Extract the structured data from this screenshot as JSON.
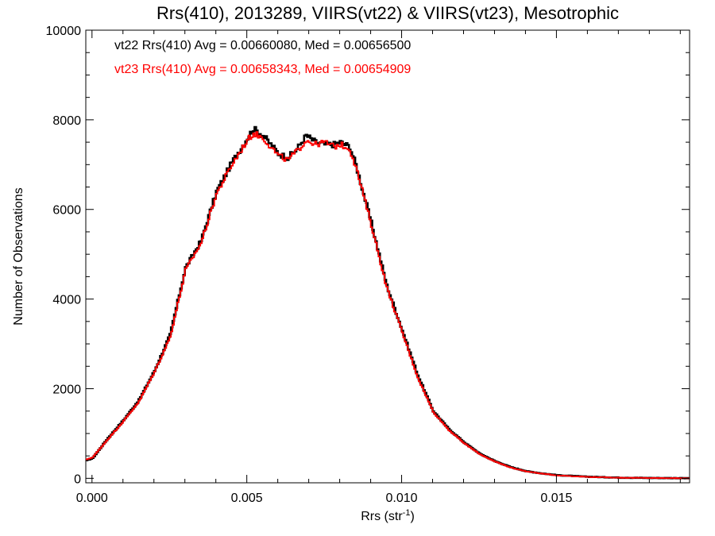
{
  "chart_data": {
    "type": "line",
    "title": "Rrs(410), 2013289, VIIRS(vt22) & VIIRS(vt23), Mesotrophic",
    "xlabel": "Rrs (str",
    "xlabel_sup": "-1",
    "xlabel_close": ")",
    "ylabel": "Number of Observations",
    "xlim": [
      -0.0002,
      0.0193
    ],
    "ylim": [
      -100,
      10000
    ],
    "x_ticks": [
      {
        "value": 0.0,
        "label": "0.000"
      },
      {
        "value": 0.005,
        "label": "0.005"
      },
      {
        "value": 0.01,
        "label": "0.010"
      },
      {
        "value": 0.015,
        "label": "0.015"
      }
    ],
    "y_ticks": [
      {
        "value": 0,
        "label": "0"
      },
      {
        "value": 2000,
        "label": "2000"
      },
      {
        "value": 4000,
        "label": "4000"
      },
      {
        "value": 6000,
        "label": "6000"
      },
      {
        "value": 8000,
        "label": "8000"
      },
      {
        "value": 10000,
        "label": "10000"
      }
    ],
    "grid": false,
    "legend_position": "top-left",
    "annotations": [
      {
        "text": "vt22 Rrs(410) Avg = 0.00660080, Med = 0.00656500",
        "color": "#000000"
      },
      {
        "text": "vt23 Rrs(410) Avg = 0.00658343, Med = 0.00654909",
        "color": "#ff0000"
      }
    ],
    "series": [
      {
        "color": "#000000",
        "step": true,
        "x": [
          -0.0002,
          0.0,
          0.0005,
          0.001,
          0.0015,
          0.002,
          0.0025,
          0.003,
          0.0035,
          0.004,
          0.0045,
          0.005,
          0.0052,
          0.0055,
          0.006,
          0.0063,
          0.0066,
          0.0069,
          0.0072,
          0.0075,
          0.0078,
          0.008,
          0.0083,
          0.0085,
          0.009,
          0.0095,
          0.01,
          0.0105,
          0.011,
          0.0115,
          0.012,
          0.0125,
          0.013,
          0.0135,
          0.014,
          0.0145,
          0.015,
          0.016,
          0.017,
          0.018,
          0.019,
          0.0193
        ],
        "y": [
          400,
          450,
          900,
          1300,
          1750,
          2400,
          3200,
          4700,
          5300,
          6400,
          7050,
          7600,
          7800,
          7650,
          7250,
          7150,
          7350,
          7650,
          7500,
          7450,
          7450,
          7500,
          7400,
          7000,
          5700,
          4300,
          3300,
          2300,
          1500,
          1100,
          800,
          550,
          380,
          250,
          160,
          110,
          70,
          35,
          15,
          8,
          4,
          0
        ]
      },
      {
        "color": "#ff0000",
        "step": true,
        "x": [
          -0.0002,
          0.0,
          0.0005,
          0.001,
          0.0015,
          0.002,
          0.0025,
          0.003,
          0.0035,
          0.004,
          0.0045,
          0.005,
          0.0052,
          0.0055,
          0.006,
          0.0063,
          0.0066,
          0.0069,
          0.0072,
          0.0075,
          0.0078,
          0.008,
          0.0083,
          0.0085,
          0.009,
          0.0095,
          0.01,
          0.0105,
          0.011,
          0.0115,
          0.012,
          0.0125,
          0.013,
          0.0135,
          0.014,
          0.0145,
          0.015,
          0.016,
          0.017,
          0.018,
          0.019,
          0.0193
        ],
        "y": [
          420,
          470,
          880,
          1280,
          1720,
          2380,
          3150,
          4650,
          5250,
          6350,
          7000,
          7550,
          7700,
          7600,
          7200,
          7100,
          7300,
          7550,
          7450,
          7500,
          7400,
          7450,
          7350,
          6950,
          5650,
          4250,
          3250,
          2250,
          1480,
          1080,
          780,
          540,
          370,
          240,
          155,
          105,
          65,
          32,
          14,
          7,
          3,
          0
        ]
      }
    ]
  }
}
